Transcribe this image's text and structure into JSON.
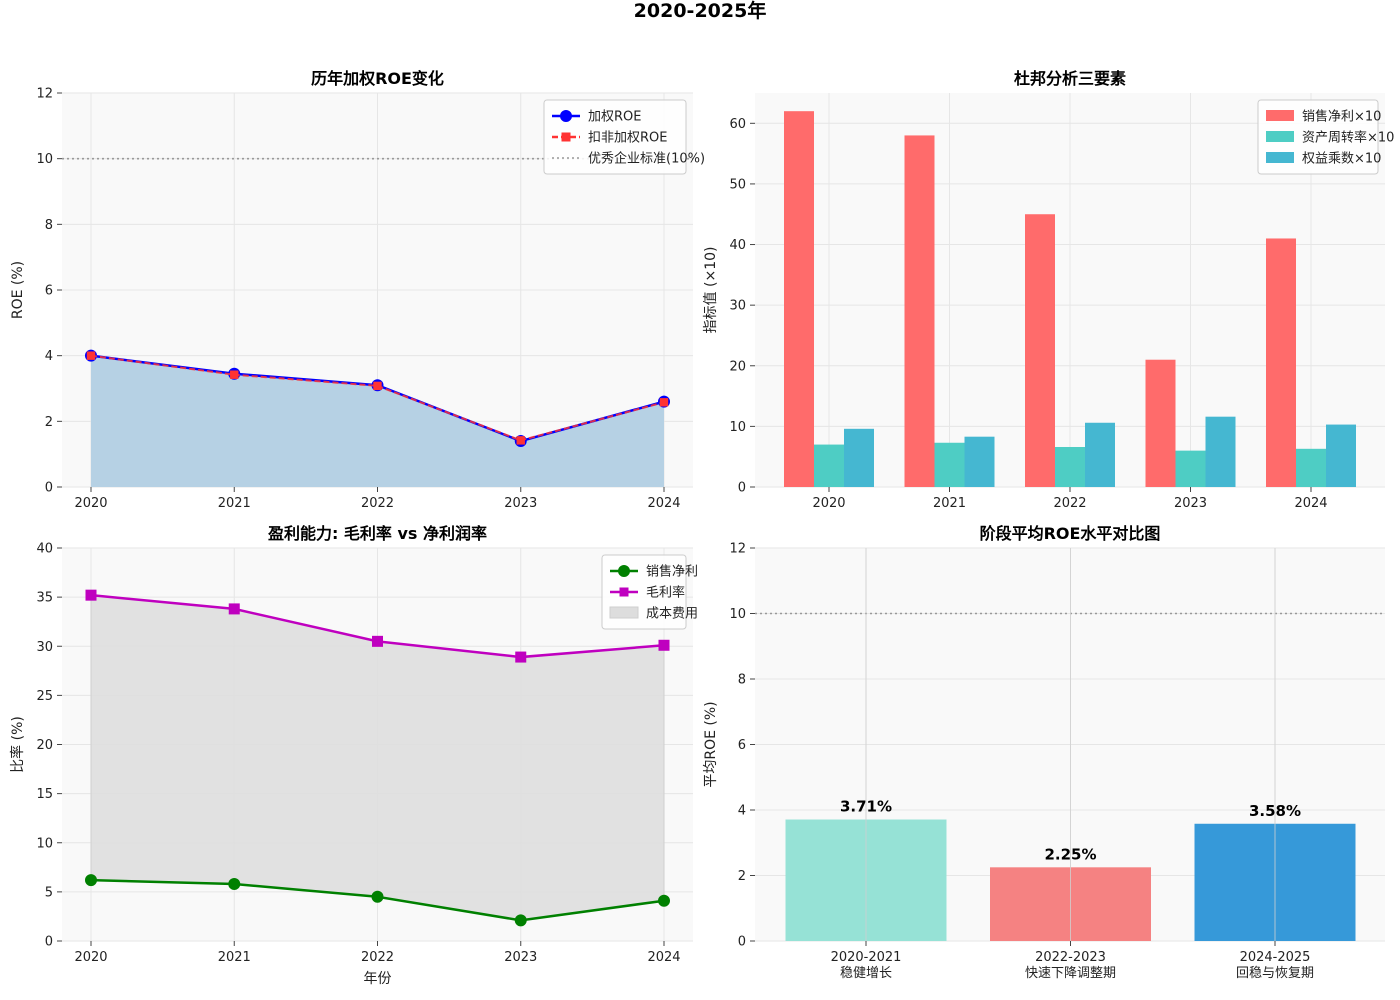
{
  "suptitle": "2020-2025年",
  "chart_data": [
    {
      "id": "p1",
      "type": "line",
      "title": "历年加权ROE变化",
      "xlabel": "",
      "ylabel": "ROE (%)",
      "categories": [
        "2020",
        "2021",
        "2022",
        "2023",
        "2024"
      ],
      "ylim": [
        0,
        12
      ],
      "yticks": [
        0,
        2,
        4,
        6,
        8,
        10,
        12
      ],
      "grid": true,
      "legend_position": "top-right",
      "series": [
        {
          "name": "加权ROE",
          "values": [
            4.0,
            3.45,
            3.1,
            1.4,
            2.6
          ],
          "color": "#0000ff",
          "marker": "circle"
        },
        {
          "name": "扣非加权ROE",
          "values": [
            4.0,
            3.42,
            3.08,
            1.42,
            2.58
          ],
          "color": "#ff3333",
          "marker": "square",
          "dashed": true
        }
      ],
      "reference_line": {
        "name": "优秀企业标准(10%)",
        "value": 10,
        "color": "#999999"
      },
      "area_fill_color": "#b6d1e4"
    },
    {
      "id": "p2",
      "type": "bar",
      "title": "杜邦分析三要素",
      "xlabel": "",
      "ylabel": "指标值 (×10)",
      "categories": [
        "2020",
        "2021",
        "2022",
        "2023",
        "2024"
      ],
      "ylim": [
        0,
        65
      ],
      "yticks": [
        0,
        10,
        20,
        30,
        40,
        50,
        60
      ],
      "grid": true,
      "legend_position": "top-right",
      "series": [
        {
          "name": "销售净利×10",
          "values": [
            62,
            58,
            45,
            21,
            41
          ],
          "color": "#ff6b6b"
        },
        {
          "name": "资产周转率×10",
          "values": [
            7,
            7.3,
            6.6,
            6,
            6.3
          ],
          "color": "#4ecdc4"
        },
        {
          "name": "权益乘数×10",
          "values": [
            9.6,
            8.3,
            10.6,
            11.6,
            10.3
          ],
          "color": "#45b7d1"
        }
      ]
    },
    {
      "id": "p3",
      "type": "line",
      "title": "盈利能力: 毛利率 vs 净利润率",
      "xlabel": "年份",
      "ylabel": "比率 (%)",
      "categories": [
        "2020",
        "2021",
        "2022",
        "2023",
        "2024"
      ],
      "ylim": [
        0,
        40
      ],
      "yticks": [
        0,
        5,
        10,
        15,
        20,
        25,
        30,
        35,
        40
      ],
      "grid": true,
      "legend_position": "top-right",
      "series": [
        {
          "name": "销售净利",
          "values": [
            6.2,
            5.8,
            4.5,
            2.1,
            4.1
          ],
          "color": "#008000",
          "marker": "circle"
        },
        {
          "name": "毛利率",
          "values": [
            35.2,
            33.8,
            30.5,
            28.9,
            30.1
          ],
          "color": "#bf00bf",
          "marker": "square"
        }
      ],
      "band": {
        "name": "成本费用",
        "color": "#dddddd"
      }
    },
    {
      "id": "p4",
      "type": "bar",
      "title": "阶段平均ROE水平对比图",
      "xlabel": "",
      "ylabel": "平均ROE (%)",
      "ylim": [
        0,
        12
      ],
      "yticks": [
        0,
        2,
        4,
        6,
        8,
        10,
        12
      ],
      "grid": true,
      "categories": [
        {
          "line1": "2020-2021",
          "line2": "稳健增长"
        },
        {
          "line1": "2022-2023",
          "line2": "快速下降调整期"
        },
        {
          "line1": "2024-2025",
          "line2": "回稳与恢复期"
        }
      ],
      "values": [
        3.71,
        2.25,
        3.58
      ],
      "data_labels": [
        "3.71%",
        "2.25%",
        "3.58%"
      ],
      "colors": [
        "#96e2d6",
        "#f58282",
        "#3699d9"
      ],
      "reference_line": {
        "value": 10,
        "color": "#999999"
      }
    }
  ]
}
